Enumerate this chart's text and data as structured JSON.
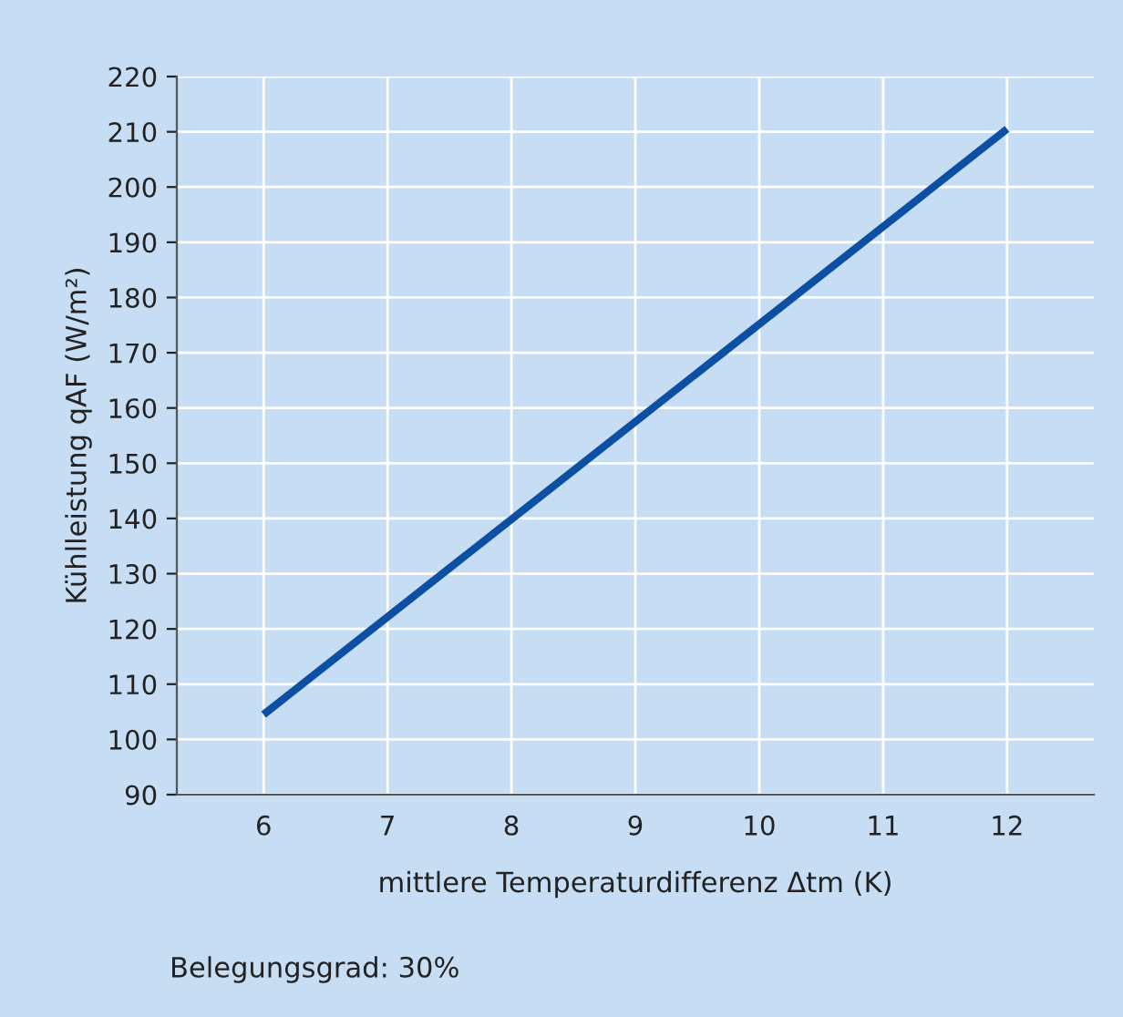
{
  "chart_data": {
    "type": "line",
    "xlabel": "mittlere Temperaturdifferenz Δtm (K)",
    "ylabel": "Kühlleistung qAF (W/m²)",
    "x": [
      6,
      12
    ],
    "series": [
      {
        "color": "#0d4fa3",
        "values": [
          104.5,
          210.5
        ]
      }
    ],
    "xlim": [
      5.3,
      12.7
    ],
    "xticks": [
      6,
      7,
      8,
      9,
      10,
      11,
      12
    ],
    "ylim": [
      90,
      220
    ],
    "yticks": [
      90,
      100,
      110,
      120,
      130,
      140,
      150,
      160,
      170,
      180,
      190,
      200,
      210,
      220
    ],
    "grid": true,
    "marker": "none",
    "line_style": "solid",
    "annotations": [
      "Belegungsgrad: 30%"
    ]
  }
}
